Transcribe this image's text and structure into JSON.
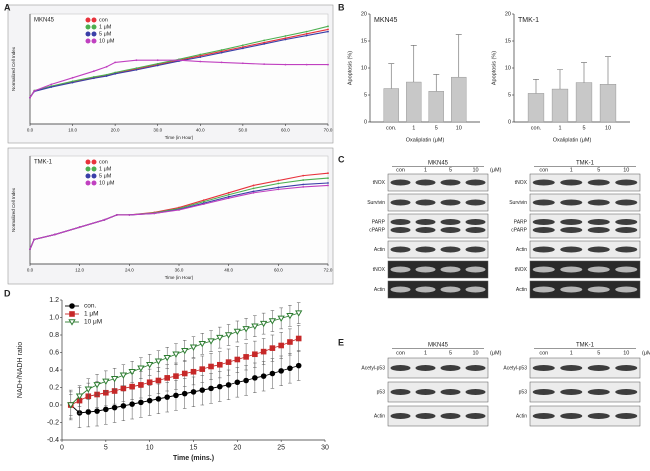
{
  "panels": [
    "A",
    "B",
    "C",
    "D",
    "E"
  ],
  "chart_data": [
    {
      "type": "line",
      "title": "MKN45",
      "x_label": "Time (in Hour)",
      "y_label": "Normalized Cell Index",
      "x": [
        0,
        1,
        5,
        10,
        15,
        18,
        20,
        25,
        30,
        35,
        40,
        45,
        50,
        55,
        60,
        65,
        70
      ],
      "xlim": [
        0,
        70
      ],
      "xticks": [
        {
          "value": 0,
          "label": "0.0"
        },
        {
          "value": 10,
          "label": "10.0"
        },
        {
          "value": 20,
          "label": "20.0"
        },
        {
          "value": 30,
          "label": "30.0"
        },
        {
          "value": 40,
          "label": "40.0"
        },
        {
          "value": 50,
          "label": "50.0"
        },
        {
          "value": 60,
          "label": "60.0"
        },
        {
          "value": 70,
          "label": "70.0"
        }
      ],
      "ylim": [
        0,
        2.5
      ],
      "legend": "upper left",
      "series": [
        {
          "name": "con",
          "color": "#e8323c",
          "values": [
            0.6,
            0.75,
            0.85,
            0.95,
            1.05,
            1.1,
            1.15,
            1.25,
            1.35,
            1.45,
            1.55,
            1.65,
            1.75,
            1.85,
            1.95,
            2.05,
            2.15
          ]
        },
        {
          "name": "1 μM",
          "color": "#4caf50",
          "values": [
            0.6,
            0.76,
            0.86,
            0.97,
            1.07,
            1.12,
            1.17,
            1.27,
            1.37,
            1.47,
            1.58,
            1.68,
            1.79,
            1.9,
            2.0,
            2.1,
            2.22
          ]
        },
        {
          "name": "5 μM",
          "color": "#3a3fa8",
          "values": [
            0.6,
            0.74,
            0.84,
            0.94,
            1.04,
            1.09,
            1.14,
            1.23,
            1.33,
            1.43,
            1.52,
            1.62,
            1.72,
            1.82,
            1.92,
            2.01,
            2.1
          ]
        },
        {
          "name": "10 μM",
          "color": "#c040c0",
          "values": [
            0.6,
            0.75,
            0.9,
            1.05,
            1.2,
            1.3,
            1.4,
            1.45,
            1.45,
            1.45,
            1.42,
            1.4,
            1.38,
            1.36,
            1.35,
            1.35,
            1.35
          ]
        }
      ]
    },
    {
      "type": "line",
      "title": "TMK-1",
      "x_label": "Time (in Hour)",
      "y_label": "Normalized Cell Index",
      "x": [
        0,
        1,
        6,
        12,
        18,
        21,
        24,
        30,
        36,
        42,
        48,
        54,
        60,
        66,
        72
      ],
      "xlim": [
        0,
        72
      ],
      "xticks": [
        {
          "value": 0,
          "label": "0.0"
        },
        {
          "value": 12,
          "label": "12.0"
        },
        {
          "value": 24,
          "label": "24.0"
        },
        {
          "value": 36,
          "label": "36.0"
        },
        {
          "value": 48,
          "label": "48.0"
        },
        {
          "value": 60,
          "label": "60.0"
        },
        {
          "value": 72,
          "label": "72.0"
        }
      ],
      "ylim": [
        0,
        2.2
      ],
      "legend": "upper left",
      "series": [
        {
          "name": "con",
          "color": "#e8323c",
          "values": [
            0.3,
            0.5,
            0.6,
            0.75,
            0.9,
            1.0,
            1.0,
            1.05,
            1.15,
            1.3,
            1.45,
            1.6,
            1.7,
            1.8,
            1.85
          ]
        },
        {
          "name": "1 μM",
          "color": "#4caf50",
          "values": [
            0.3,
            0.5,
            0.6,
            0.75,
            0.9,
            1.0,
            1.0,
            1.04,
            1.13,
            1.27,
            1.41,
            1.54,
            1.64,
            1.71,
            1.75
          ]
        },
        {
          "name": "5 μM",
          "color": "#3a3fa8",
          "values": [
            0.3,
            0.5,
            0.6,
            0.75,
            0.9,
            1.0,
            1.0,
            1.03,
            1.11,
            1.24,
            1.37,
            1.48,
            1.56,
            1.62,
            1.65
          ]
        },
        {
          "name": "10 μM",
          "color": "#c040c0",
          "values": [
            0.3,
            0.5,
            0.6,
            0.75,
            0.9,
            1.0,
            1.0,
            1.03,
            1.1,
            1.22,
            1.34,
            1.45,
            1.52,
            1.57,
            1.6
          ]
        }
      ]
    },
    {
      "type": "bar",
      "title": "MKN45",
      "x_label": "Oxaliplatin (μM)",
      "y_label": "Apoptosis (%)",
      "categories": [
        "con.",
        "1",
        "5",
        "10"
      ],
      "values": [
        6.2,
        7.4,
        5.7,
        8.3
      ],
      "errors": [
        4.6,
        6.8,
        3.1,
        7.9
      ],
      "color": "#c8c8c8",
      "ylim": [
        0,
        20
      ],
      "yticks": [
        0,
        5,
        10,
        15,
        20
      ]
    },
    {
      "type": "bar",
      "title": "TMK-1",
      "x_label": "Oxaliplatin (μM)",
      "y_label": "Apoptosis (%)",
      "categories": [
        "con.",
        "1",
        "5",
        "10"
      ],
      "values": [
        5.3,
        6.1,
        7.3,
        7.0
      ],
      "errors": [
        2.6,
        3.6,
        3.7,
        5.1
      ],
      "color": "#c8c8c8",
      "ylim": [
        0,
        20
      ],
      "yticks": [
        0,
        5,
        10,
        15,
        20
      ]
    },
    {
      "type": "line",
      "x_label": "Time (mins.)",
      "y_label": "NAD+/NADH ratio",
      "x": [
        1,
        2,
        3,
        4,
        5,
        6,
        7,
        8,
        9,
        10,
        11,
        12,
        13,
        14,
        15,
        16,
        17,
        18,
        19,
        20,
        21,
        22,
        23,
        24,
        25,
        26,
        27
      ],
      "xlim": [
        0,
        30
      ],
      "xticks": [
        0,
        5,
        10,
        15,
        20,
        25,
        30
      ],
      "ylim": [
        -0.4,
        1.2
      ],
      "yticks": [
        -0.4,
        -0.2,
        {
          "value": 0,
          "label": "0.0"
        },
        0.2,
        0.4,
        0.6,
        0.8,
        {
          "value": 1,
          "label": "1.0"
        },
        1.2
      ],
      "legend": "upper left",
      "series": [
        {
          "name": "con.",
          "color": "#000000",
          "marker": "circle",
          "error": 0.17,
          "values": [
            0,
            -0.09,
            -0.08,
            -0.07,
            -0.05,
            -0.03,
            -0.01,
            0.01,
            0.03,
            0.05,
            0.07,
            0.09,
            0.11,
            0.13,
            0.15,
            0.17,
            0.19,
            0.21,
            0.23,
            0.26,
            0.28,
            0.31,
            0.33,
            0.36,
            0.39,
            0.42,
            0.45
          ]
        },
        {
          "name": "1 μM",
          "color": "#c62828",
          "marker": "square",
          "error": 0.15,
          "values": [
            0,
            0.05,
            0.1,
            0.12,
            0.14,
            0.16,
            0.19,
            0.21,
            0.23,
            0.26,
            0.28,
            0.31,
            0.33,
            0.36,
            0.38,
            0.41,
            0.44,
            0.46,
            0.49,
            0.52,
            0.55,
            0.58,
            0.61,
            0.65,
            0.68,
            0.72,
            0.76
          ]
        },
        {
          "name": "10 μM",
          "color": "#2e7d32",
          "marker": "triangle-down",
          "error": 0.12,
          "values": [
            0,
            0.1,
            0.18,
            0.23,
            0.27,
            0.3,
            0.34,
            0.38,
            0.42,
            0.46,
            0.5,
            0.54,
            0.58,
            0.62,
            0.66,
            0.7,
            0.73,
            0.77,
            0.8,
            0.84,
            0.87,
            0.9,
            0.93,
            0.96,
            0.99,
            1.02,
            1.05
          ]
        }
      ]
    }
  ],
  "blots": [
    {
      "title": "MKN45",
      "lanes": [
        "con",
        "1",
        "5",
        "10"
      ],
      "unit": "(μM)",
      "rows": [
        [
          "tNOX"
        ],
        [
          "Survivin"
        ],
        [
          "PARP",
          "cPARP"
        ],
        [
          "Actin"
        ],
        [
          "tNOX"
        ],
        [
          "Actin"
        ]
      ]
    },
    {
      "title": "TMK-1",
      "lanes": [
        "con",
        "1",
        "5",
        "10"
      ],
      "rows": [
        [
          "tNOX"
        ],
        [
          "Survivin"
        ],
        [
          "PARP",
          "cPARP"
        ],
        [
          "Actin"
        ],
        [
          "tNOX"
        ],
        [
          "Actin"
        ]
      ]
    },
    {
      "title": "MKN45",
      "lanes": [
        "con",
        "1",
        "5",
        "10"
      ],
      "unit": "(μM)",
      "rows": [
        [
          "Acetyl-p53"
        ],
        [
          "p53"
        ],
        [
          "Actin"
        ]
      ]
    },
    {
      "title": "TMK-1",
      "lanes": [
        "con",
        "1",
        "5",
        "10"
      ],
      "unit": "(μM)",
      "rows": [
        [
          "Acetyl-p53"
        ],
        [
          "p53"
        ],
        [
          "Actin"
        ]
      ]
    }
  ]
}
